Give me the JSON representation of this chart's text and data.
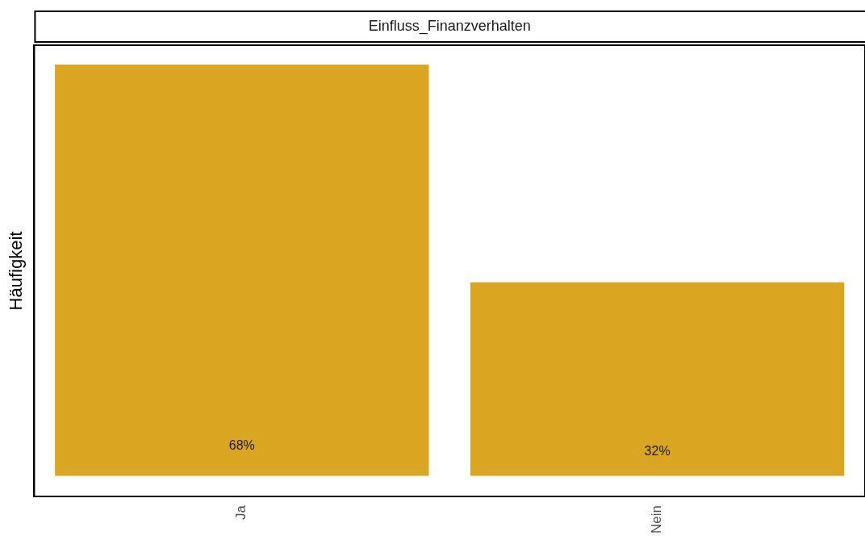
{
  "chart_data": {
    "type": "bar",
    "title": "Einfluss_Finanzverhalten",
    "ylabel": "Häufigkeit",
    "categories": [
      "Ja",
      "Nein"
    ],
    "values": [
      68,
      32
    ],
    "value_labels": [
      "68%",
      "32%"
    ],
    "color": "#daa520",
    "ylim": [
      -3.4,
      71.2
    ],
    "tick_labels": "x",
    "grid": false,
    "legend": false
  }
}
